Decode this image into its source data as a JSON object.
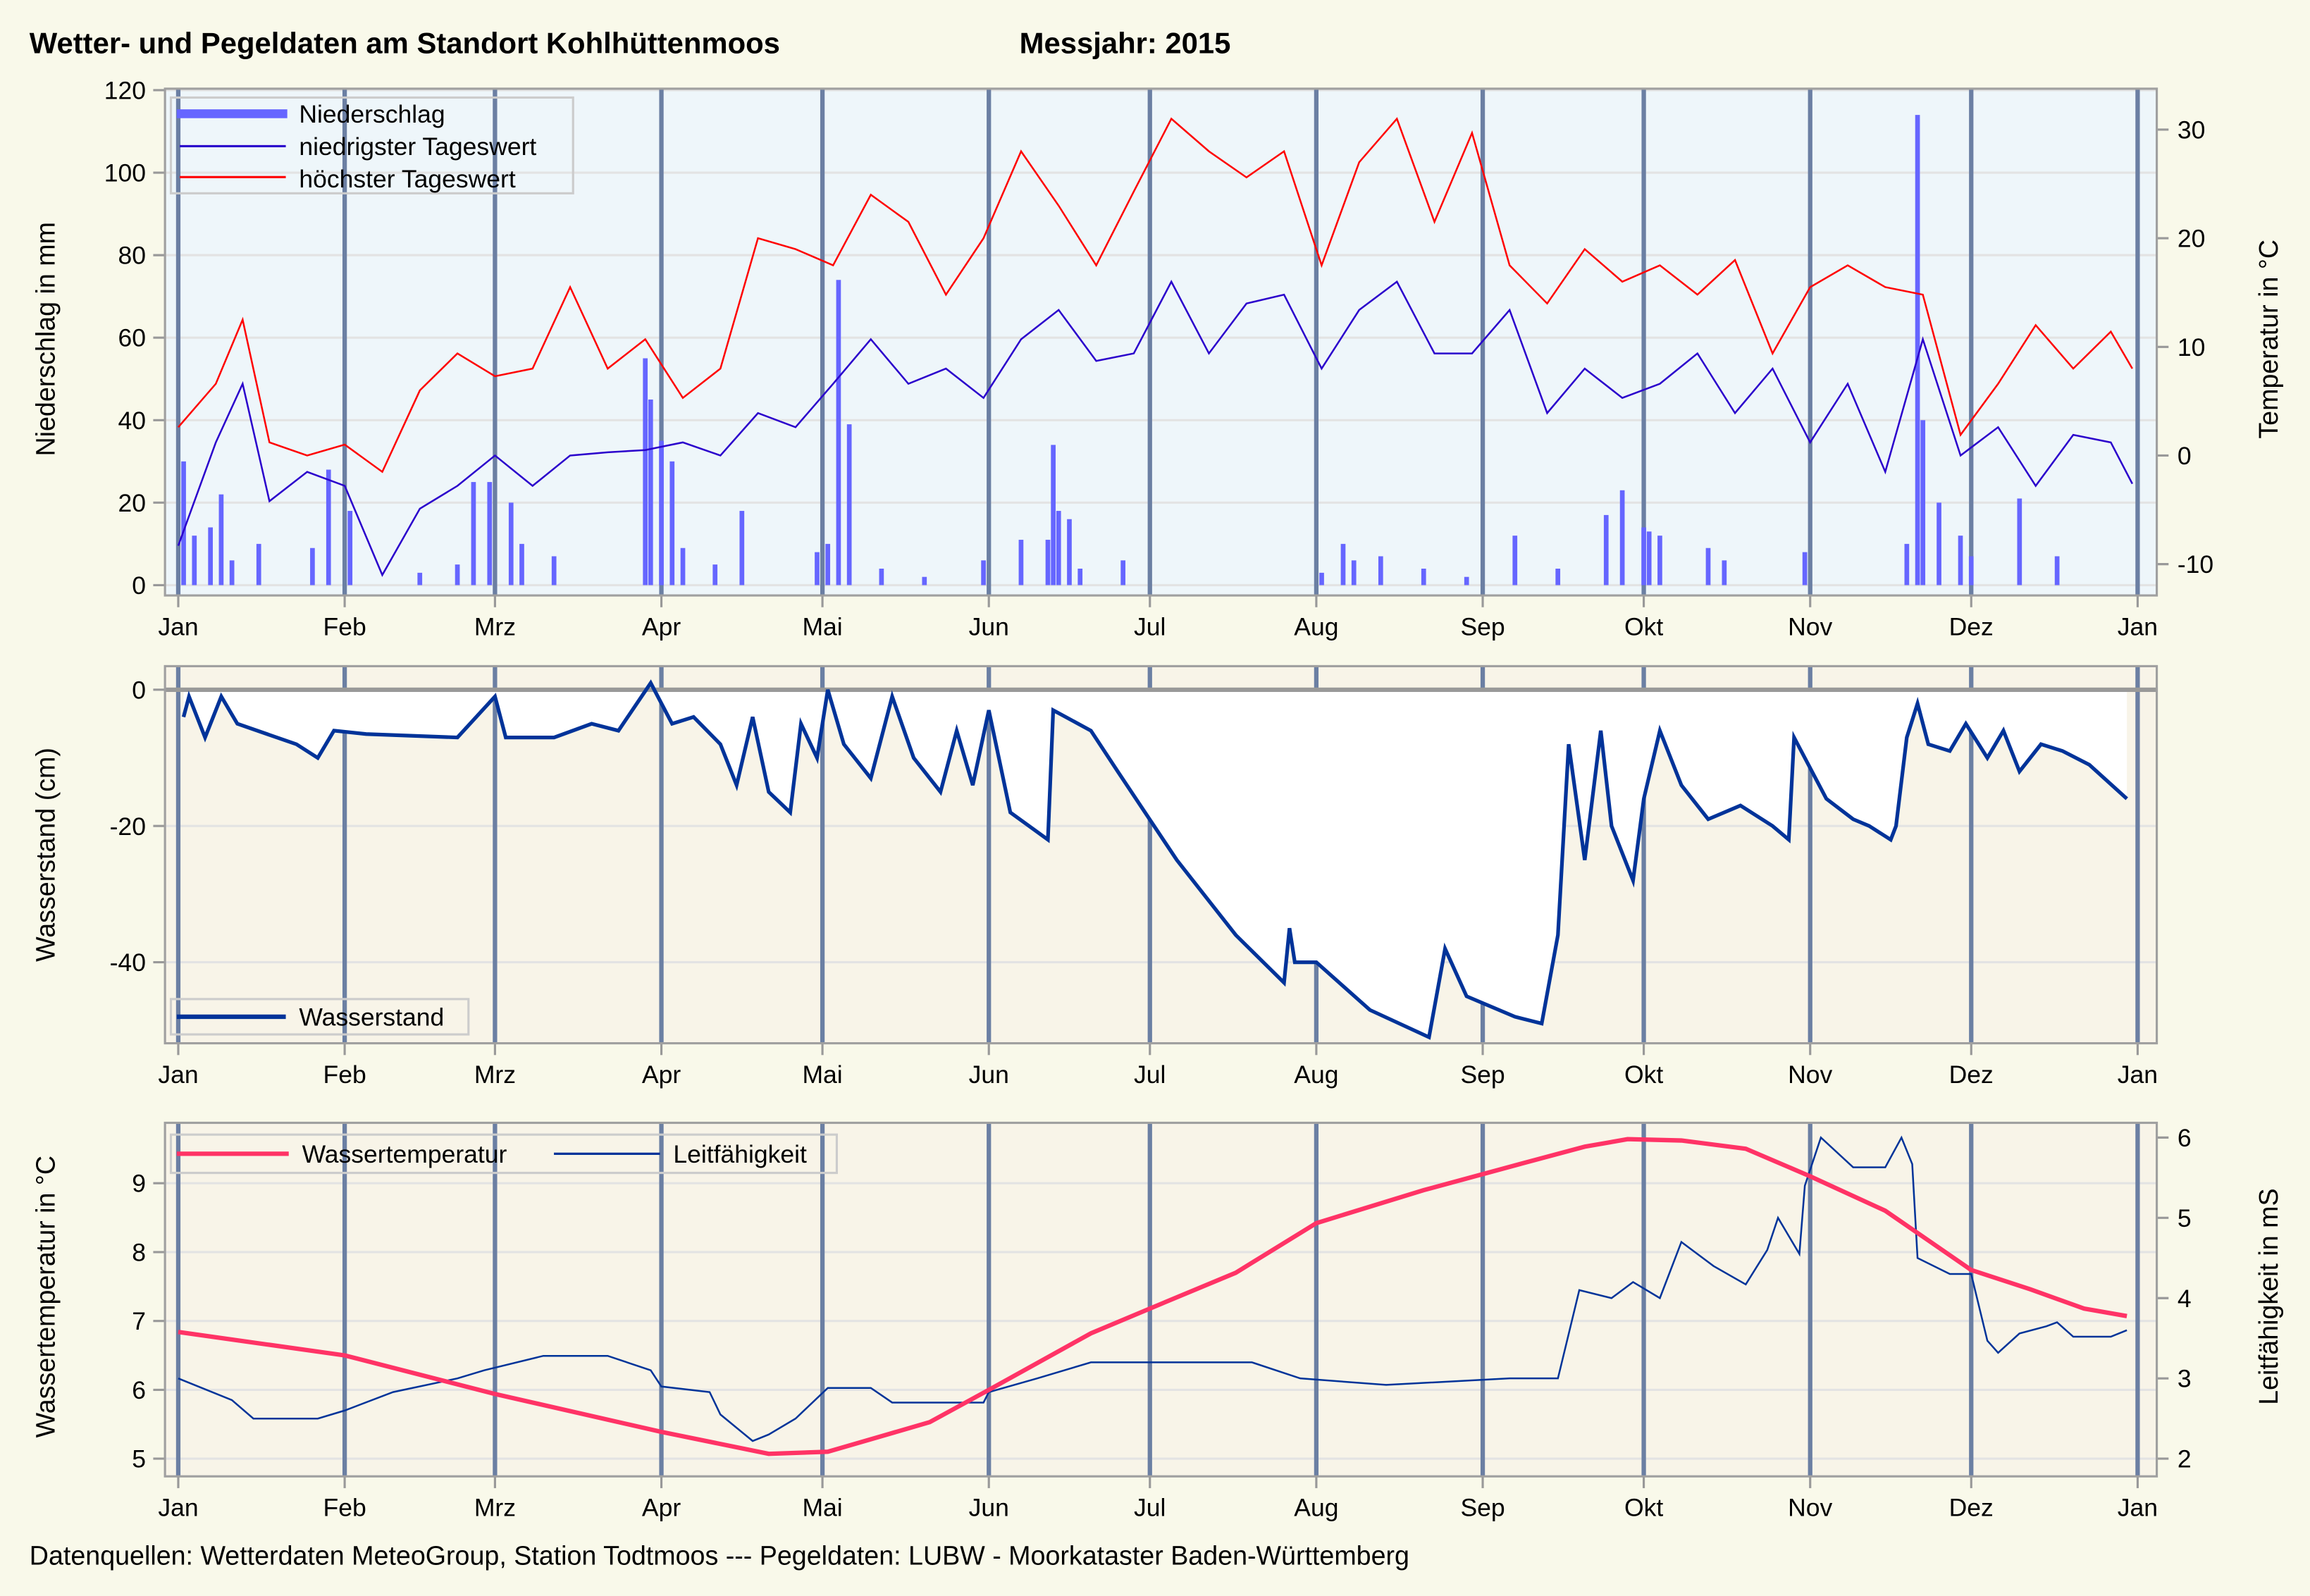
{
  "title": "Wetter- und Pegeldaten am Standort Kohlhüttenmoos",
  "year_label": "Messjahr:  2015",
  "footer": "Datenquellen: Wetterdaten MeteoGroup, Station Todtmoos --- Pegeldaten:  LUBW - Moorkataster Baden-Württemberg",
  "colors": {
    "page_bg": "#f9f9ea",
    "panel1_bg": "#eef6fa",
    "panel_bg": "#f8f4e8",
    "month_line": "#6b7fa3",
    "precip": "#6666ff",
    "tmin": "#2a00cc",
    "tmax": "#ff0000",
    "water_level": "#003399",
    "water_temp": "#ff3366",
    "conductivity": "#003399"
  },
  "chart_data": [
    {
      "type": "bar+line",
      "panel": "weather",
      "x_unit": "day of year 2015",
      "month_labels": [
        "Jan",
        "Feb",
        "Mrz",
        "Apr",
        "Mai",
        "Jun",
        "Jul",
        "Aug",
        "Sep",
        "Okt",
        "Nov",
        "Dez",
        "Jan"
      ],
      "month_start_days": [
        0,
        31,
        59,
        90,
        120,
        151,
        181,
        212,
        243,
        273,
        304,
        334,
        365
      ],
      "ylabel": "Niederschlag in mm",
      "ylim": [
        0,
        120
      ],
      "yticks": [
        0,
        20,
        40,
        60,
        80,
        100,
        120
      ],
      "y2label": "Temperatur in °C",
      "y2lim": [
        -11.6,
        33.2
      ],
      "y2ticks": [
        -10,
        0,
        10,
        20,
        30
      ],
      "legend": [
        "Niederschlag",
        "niedrigster Tageswert",
        "höchster Tageswert"
      ],
      "legend_position": "top-left",
      "precipitation": [
        [
          1,
          30
        ],
        [
          3,
          12
        ],
        [
          6,
          14
        ],
        [
          8,
          22
        ],
        [
          10,
          6
        ],
        [
          15,
          10
        ],
        [
          25,
          9
        ],
        [
          28,
          28
        ],
        [
          32,
          18
        ],
        [
          45,
          3
        ],
        [
          52,
          5
        ],
        [
          55,
          25
        ],
        [
          58,
          25
        ],
        [
          62,
          20
        ],
        [
          64,
          10
        ],
        [
          70,
          7
        ],
        [
          87,
          55
        ],
        [
          88,
          45
        ],
        [
          90,
          35
        ],
        [
          92,
          30
        ],
        [
          94,
          9
        ],
        [
          100,
          5
        ],
        [
          105,
          18
        ],
        [
          119,
          8
        ],
        [
          121,
          10
        ],
        [
          123,
          74
        ],
        [
          125,
          39
        ],
        [
          131,
          4
        ],
        [
          139,
          2
        ],
        [
          150,
          6
        ],
        [
          157,
          11
        ],
        [
          162,
          11
        ],
        [
          163,
          34
        ],
        [
          164,
          18
        ],
        [
          166,
          16
        ],
        [
          168,
          4
        ],
        [
          176,
          6
        ],
        [
          213,
          3
        ],
        [
          217,
          10
        ],
        [
          219,
          6
        ],
        [
          224,
          7
        ],
        [
          232,
          4
        ],
        [
          240,
          2
        ],
        [
          249,
          12
        ],
        [
          257,
          4
        ],
        [
          266,
          17
        ],
        [
          269,
          23
        ],
        [
          273,
          14
        ],
        [
          274,
          13
        ],
        [
          276,
          12
        ],
        [
          285,
          9
        ],
        [
          288,
          6
        ],
        [
          303,
          8
        ],
        [
          322,
          10
        ],
        [
          324,
          114
        ],
        [
          325,
          40
        ],
        [
          328,
          20
        ],
        [
          332,
          12
        ],
        [
          334,
          7
        ],
        [
          343,
          21
        ],
        [
          350,
          7
        ]
      ],
      "tmin": [
        [
          0,
          -8.3
        ],
        [
          7,
          1.2
        ],
        [
          12,
          6.6
        ],
        [
          17,
          -4.2
        ],
        [
          24,
          -1.5
        ],
        [
          31,
          -2.8
        ],
        [
          38,
          -11
        ],
        [
          45,
          -4.9
        ],
        [
          52,
          -2.8
        ],
        [
          59,
          0
        ],
        [
          66,
          -2.8
        ],
        [
          73,
          0
        ],
        [
          80,
          0.3
        ],
        [
          87,
          0.5
        ],
        [
          94,
          1.2
        ],
        [
          101,
          0
        ],
        [
          108,
          3.9
        ],
        [
          115,
          2.6
        ],
        [
          122,
          6.6
        ],
        [
          129,
          10.7
        ],
        [
          136,
          6.6
        ],
        [
          143,
          8
        ],
        [
          150,
          5.3
        ],
        [
          157,
          10.7
        ],
        [
          164,
          13.4
        ],
        [
          171,
          8.7
        ],
        [
          178,
          9.4
        ],
        [
          185,
          16
        ],
        [
          192,
          9.4
        ],
        [
          199,
          14
        ],
        [
          206,
          14.8
        ],
        [
          213,
          8
        ],
        [
          220,
          13.4
        ],
        [
          227,
          16
        ],
        [
          234,
          9.4
        ],
        [
          241,
          9.4
        ],
        [
          248,
          13.4
        ],
        [
          255,
          3.9
        ],
        [
          262,
          8
        ],
        [
          269,
          5.3
        ],
        [
          276,
          6.6
        ],
        [
          283,
          9.4
        ],
        [
          290,
          3.9
        ],
        [
          297,
          8
        ],
        [
          304,
          1.2
        ],
        [
          311,
          6.6
        ],
        [
          318,
          -1.5
        ],
        [
          325,
          10.7
        ],
        [
          332,
          0
        ],
        [
          339,
          2.6
        ],
        [
          346,
          -2.8
        ],
        [
          353,
          1.9
        ],
        [
          360,
          1.2
        ],
        [
          364,
          -2.6
        ]
      ],
      "tmax": [
        [
          0,
          2.6
        ],
        [
          7,
          6.6
        ],
        [
          12,
          12.5
        ],
        [
          17,
          1.2
        ],
        [
          24,
          0
        ],
        [
          31,
          1
        ],
        [
          38,
          -1.5
        ],
        [
          45,
          6
        ],
        [
          52,
          9.4
        ],
        [
          59,
          7.3
        ],
        [
          66,
          8
        ],
        [
          73,
          15.5
        ],
        [
          80,
          8
        ],
        [
          87,
          10.7
        ],
        [
          94,
          5.3
        ],
        [
          101,
          8
        ],
        [
          108,
          20
        ],
        [
          115,
          19
        ],
        [
          122,
          17.5
        ],
        [
          129,
          24
        ],
        [
          136,
          21.5
        ],
        [
          143,
          14.8
        ],
        [
          150,
          20
        ],
        [
          157,
          28
        ],
        [
          164,
          23
        ],
        [
          171,
          17.5
        ],
        [
          178,
          24.3
        ],
        [
          185,
          31
        ],
        [
          192,
          28
        ],
        [
          199,
          25.6
        ],
        [
          206,
          28
        ],
        [
          213,
          17.5
        ],
        [
          220,
          27
        ],
        [
          227,
          31
        ],
        [
          234,
          21.5
        ],
        [
          241,
          29.7
        ],
        [
          248,
          17.5
        ],
        [
          255,
          14
        ],
        [
          262,
          19
        ],
        [
          269,
          16
        ],
        [
          276,
          17.5
        ],
        [
          283,
          14.8
        ],
        [
          290,
          18
        ],
        [
          297,
          9.4
        ],
        [
          304,
          15.5
        ],
        [
          311,
          17.5
        ],
        [
          318,
          15.5
        ],
        [
          325,
          14.8
        ],
        [
          332,
          1.9
        ],
        [
          339,
          6.6
        ],
        [
          346,
          12
        ],
        [
          353,
          8
        ],
        [
          360,
          11.4
        ],
        [
          364,
          8
        ]
      ]
    },
    {
      "type": "line",
      "panel": "water_level",
      "ylabel": "Wasserstand (cm)",
      "ylim": [
        -52,
        3.5
      ],
      "yticks": [
        -40,
        -20,
        0
      ],
      "legend": [
        "Wasserstand"
      ],
      "legend_position": "bottom-left",
      "water_level": [
        [
          1,
          -4
        ],
        [
          2,
          -1
        ],
        [
          5,
          -7
        ],
        [
          8,
          -1
        ],
        [
          11,
          -5
        ],
        [
          22,
          -8
        ],
        [
          26,
          -10
        ],
        [
          29,
          -6
        ],
        [
          35,
          -6.5
        ],
        [
          52,
          -7
        ],
        [
          59,
          -1
        ],
        [
          61,
          -7
        ],
        [
          70,
          -7
        ],
        [
          77,
          -5
        ],
        [
          82,
          -6
        ],
        [
          88,
          1
        ],
        [
          92,
          -5
        ],
        [
          96,
          -4
        ],
        [
          101,
          -8
        ],
        [
          104,
          -14
        ],
        [
          107,
          -4
        ],
        [
          110,
          -15
        ],
        [
          114,
          -18
        ],
        [
          116,
          -5
        ],
        [
          119,
          -10
        ],
        [
          121,
          0
        ],
        [
          124,
          -8
        ],
        [
          129,
          -13
        ],
        [
          133,
          -1
        ],
        [
          137,
          -10
        ],
        [
          142,
          -15
        ],
        [
          145,
          -6
        ],
        [
          148,
          -14
        ],
        [
          151,
          -3
        ],
        [
          155,
          -18
        ],
        [
          162,
          -22
        ],
        [
          163,
          -3
        ],
        [
          170,
          -6
        ],
        [
          175,
          -12
        ],
        [
          186,
          -25
        ],
        [
          197,
          -36
        ],
        [
          206,
          -43
        ],
        [
          207,
          -35
        ],
        [
          208,
          -40
        ],
        [
          212,
          -40
        ],
        [
          222,
          -47
        ],
        [
          233,
          -51
        ],
        [
          236,
          -38
        ],
        [
          240,
          -45
        ],
        [
          249,
          -48
        ],
        [
          254,
          -49
        ],
        [
          257,
          -36
        ],
        [
          259,
          -8
        ],
        [
          262,
          -25
        ],
        [
          265,
          -6
        ],
        [
          267,
          -20
        ],
        [
          271,
          -28
        ],
        [
          273,
          -16
        ],
        [
          276,
          -6
        ],
        [
          280,
          -14
        ],
        [
          285,
          -19
        ],
        [
          291,
          -17
        ],
        [
          297,
          -20
        ],
        [
          300,
          -22
        ],
        [
          301,
          -7
        ],
        [
          307,
          -16
        ],
        [
          312,
          -19
        ],
        [
          315,
          -20
        ],
        [
          319,
          -22
        ],
        [
          320,
          -20
        ],
        [
          322,
          -7
        ],
        [
          324,
          -2
        ],
        [
          326,
          -8
        ],
        [
          330,
          -9
        ],
        [
          333,
          -5
        ],
        [
          337,
          -10
        ],
        [
          340,
          -6
        ],
        [
          343,
          -12
        ],
        [
          347,
          -8
        ],
        [
          351,
          -9
        ],
        [
          356,
          -11
        ],
        [
          363,
          -16
        ]
      ]
    },
    {
      "type": "line",
      "panel": "water_temp_conductivity",
      "ylabel": "Wassertemperatur in °C",
      "ylim": [
        4.75,
        9.75
      ],
      "yticks": [
        5,
        6,
        7,
        8,
        9
      ],
      "y2label": "Leitfähigkeit in mS",
      "y2lim": [
        1.8,
        6.2
      ],
      "y2ticks": [
        2,
        3,
        4,
        5,
        6
      ],
      "legend": [
        "Wassertemperatur",
        "Leitfähigkeit"
      ],
      "legend_position": "top-left",
      "water_temp": [
        [
          0,
          6.84
        ],
        [
          31,
          6.5
        ],
        [
          59,
          5.94
        ],
        [
          90,
          5.39
        ],
        [
          110,
          5.07
        ],
        [
          121,
          5.1
        ],
        [
          140,
          5.53
        ],
        [
          151,
          6.0
        ],
        [
          170,
          6.82
        ],
        [
          181,
          7.18
        ],
        [
          197,
          7.7
        ],
        [
          212,
          8.42
        ],
        [
          232,
          8.9
        ],
        [
          250,
          9.28
        ],
        [
          262,
          9.53
        ],
        [
          270,
          9.64
        ],
        [
          280,
          9.62
        ],
        [
          292,
          9.5
        ],
        [
          304,
          9.1
        ],
        [
          318,
          8.6
        ],
        [
          326,
          8.17
        ],
        [
          334,
          7.74
        ],
        [
          345,
          7.46
        ],
        [
          355,
          7.18
        ],
        [
          363,
          7.07
        ]
      ],
      "conductivity": [
        [
          0,
          3.0
        ],
        [
          10,
          2.73
        ],
        [
          14,
          2.5
        ],
        [
          26,
          2.5
        ],
        [
          31,
          2.6
        ],
        [
          40,
          2.83
        ],
        [
          52,
          3.0
        ],
        [
          57,
          3.1
        ],
        [
          68,
          3.28
        ],
        [
          80,
          3.28
        ],
        [
          88,
          3.1
        ],
        [
          90,
          2.9
        ],
        [
          99,
          2.83
        ],
        [
          101,
          2.55
        ],
        [
          107,
          2.22
        ],
        [
          110,
          2.3
        ],
        [
          115,
          2.5
        ],
        [
          121,
          2.88
        ],
        [
          129,
          2.88
        ],
        [
          133,
          2.7
        ],
        [
          150,
          2.7
        ],
        [
          151,
          2.83
        ],
        [
          160,
          3.0
        ],
        [
          170,
          3.2
        ],
        [
          200,
          3.2
        ],
        [
          209,
          3.0
        ],
        [
          225,
          2.92
        ],
        [
          248,
          3.0
        ],
        [
          257,
          3.0
        ],
        [
          261,
          4.1
        ],
        [
          267,
          4.0
        ],
        [
          271,
          4.2
        ],
        [
          276,
          4.0
        ],
        [
          280,
          4.7
        ],
        [
          286,
          4.4
        ],
        [
          292,
          4.17
        ],
        [
          296,
          4.6
        ],
        [
          298,
          5.0
        ],
        [
          302,
          4.55
        ],
        [
          303,
          5.4
        ],
        [
          306,
          6.0
        ],
        [
          312,
          5.63
        ],
        [
          318,
          5.63
        ],
        [
          321,
          6.0
        ],
        [
          323,
          5.67
        ],
        [
          324,
          4.5
        ],
        [
          330,
          4.3
        ],
        [
          334,
          4.3
        ],
        [
          337,
          3.47
        ],
        [
          339,
          3.32
        ],
        [
          343,
          3.56
        ],
        [
          348,
          3.65
        ],
        [
          350,
          3.7
        ],
        [
          353,
          3.52
        ],
        [
          360,
          3.52
        ],
        [
          363,
          3.6
        ]
      ]
    }
  ]
}
